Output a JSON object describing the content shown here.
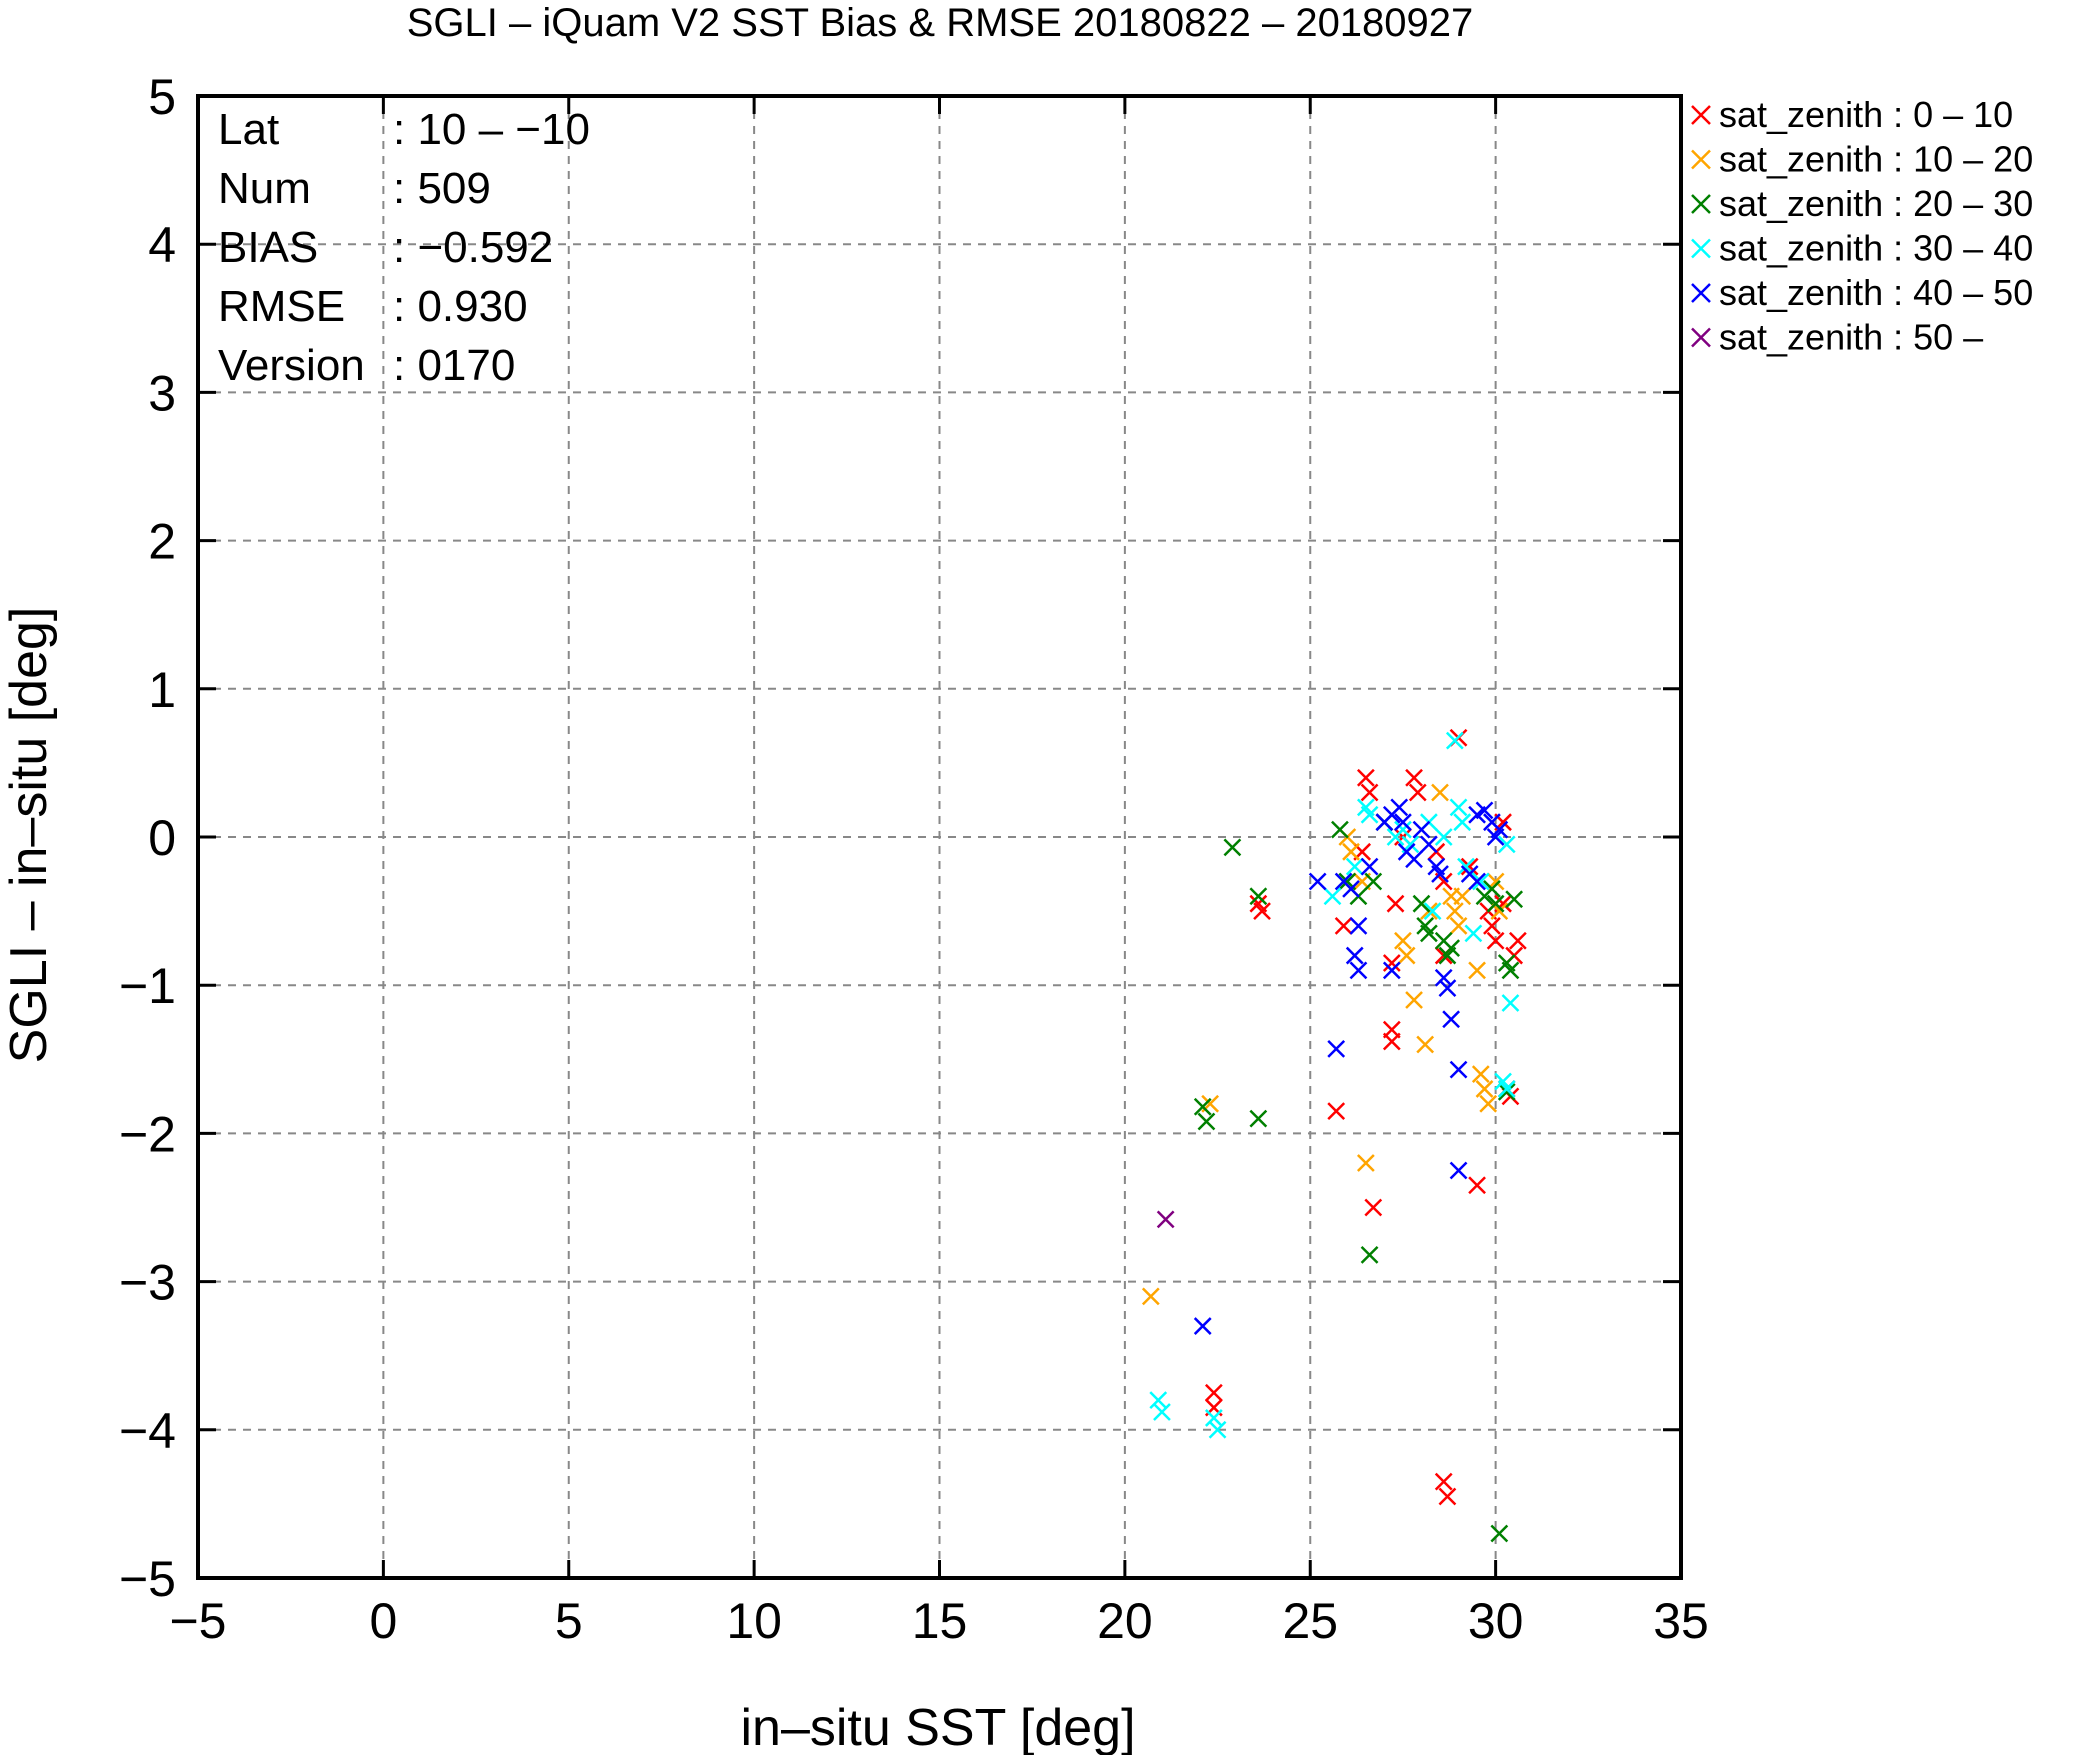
{
  "chart_data": {
    "type": "scatter",
    "title": "SGLI – iQuam V2 SST Bias & RMSE 20180822 – 20180927",
    "xlabel": "in–situ SST [deg]",
    "ylabel": "SGLI – in–situ [deg]",
    "xlim": [
      -5,
      35
    ],
    "ylim": [
      -5,
      5
    ],
    "x_ticks": [
      -5,
      0,
      5,
      10,
      15,
      20,
      25,
      30,
      35
    ],
    "x_tick_labels": [
      "−5",
      "0",
      "5",
      "10",
      "15",
      "20",
      "25",
      "30",
      "35"
    ],
    "y_ticks": [
      -5,
      -4,
      -3,
      -2,
      -1,
      0,
      1,
      2,
      3,
      4,
      5
    ],
    "y_tick_labels": [
      "−5",
      "−4",
      "−3",
      "−2",
      "−1",
      "0",
      "1",
      "2",
      "3",
      "4",
      "5"
    ],
    "grid": true,
    "legend_position": "outside-top-right",
    "stats": [
      {
        "label": "Lat",
        "value": ": 10 – −10"
      },
      {
        "label": "Num",
        "value": ": 509"
      },
      {
        "label": "BIAS",
        "value": ": −0.592"
      },
      {
        "label": "RMSE",
        "value": ": 0.930"
      },
      {
        "label": "Version",
        "value": ": 0170"
      }
    ],
    "series": [
      {
        "name": "sat_zenith :  0 – 10",
        "color": "#ff0000",
        "points": [
          [
            23.6,
            -0.45
          ],
          [
            23.7,
            -0.5
          ],
          [
            22.4,
            -3.75
          ],
          [
            22.4,
            -3.85
          ],
          [
            25.9,
            -0.6
          ],
          [
            25.7,
            -1.85
          ],
          [
            26.5,
            0.4
          ],
          [
            26.6,
            0.3
          ],
          [
            26.7,
            -2.5
          ],
          [
            26.4,
            -0.1
          ],
          [
            27.2,
            -1.3
          ],
          [
            27.2,
            -1.38
          ],
          [
            27.3,
            -0.45
          ],
          [
            27.2,
            -0.85
          ],
          [
            27.8,
            0.4
          ],
          [
            27.9,
            0.3
          ],
          [
            27.5,
            0.0
          ],
          [
            28.4,
            -0.1
          ],
          [
            28.6,
            -0.3
          ],
          [
            28.6,
            -0.8
          ],
          [
            28.6,
            -4.35
          ],
          [
            28.7,
            -4.45
          ],
          [
            29.0,
            0.67
          ],
          [
            29.5,
            -2.35
          ],
          [
            29.8,
            -0.5
          ],
          [
            29.9,
            -0.6
          ],
          [
            30.0,
            -0.7
          ],
          [
            30.2,
            0.1
          ],
          [
            30.3,
            -1.7
          ],
          [
            30.4,
            -1.75
          ],
          [
            30.5,
            -0.8
          ],
          [
            30.6,
            -0.7
          ],
          [
            30.2,
            -0.45
          ],
          [
            29.3,
            -0.2
          ]
        ]
      },
      {
        "name": "sat_zenith : 10 – 20",
        "color": "#ffa500",
        "points": [
          [
            20.7,
            -3.1
          ],
          [
            22.3,
            -1.8
          ],
          [
            26.0,
            0.0
          ],
          [
            26.1,
            -0.1
          ],
          [
            26.5,
            -2.2
          ],
          [
            26.4,
            -0.3
          ],
          [
            27.5,
            -0.7
          ],
          [
            27.6,
            -0.8
          ],
          [
            27.8,
            -1.1
          ],
          [
            28.1,
            -1.4
          ],
          [
            28.2,
            -0.5
          ],
          [
            28.5,
            0.3
          ],
          [
            28.8,
            -0.4
          ],
          [
            28.9,
            -0.5
          ],
          [
            29.0,
            -0.6
          ],
          [
            29.1,
            -0.4
          ],
          [
            29.5,
            -0.9
          ],
          [
            29.6,
            -1.6
          ],
          [
            29.7,
            -1.7
          ],
          [
            29.8,
            -1.8
          ],
          [
            30.0,
            -0.3
          ],
          [
            30.1,
            -0.5
          ]
        ]
      },
      {
        "name": "sat_zenith : 20 – 30",
        "color": "#008000",
        "points": [
          [
            22.9,
            -0.07
          ],
          [
            23.6,
            -0.4
          ],
          [
            23.6,
            -1.9
          ],
          [
            22.1,
            -1.82
          ],
          [
            22.2,
            -1.92
          ],
          [
            25.8,
            0.05
          ],
          [
            26.0,
            -0.3
          ],
          [
            26.3,
            -0.4
          ],
          [
            26.6,
            -2.82
          ],
          [
            26.7,
            -0.3
          ],
          [
            27.0,
            0.1
          ],
          [
            28.0,
            -0.45
          ],
          [
            28.1,
            -0.6
          ],
          [
            28.2,
            -0.65
          ],
          [
            28.6,
            -0.7
          ],
          [
            28.7,
            -0.8
          ],
          [
            28.8,
            -0.75
          ],
          [
            29.7,
            -0.4
          ],
          [
            29.9,
            -0.35
          ],
          [
            30.0,
            -0.45
          ],
          [
            30.1,
            -4.7
          ],
          [
            30.3,
            -1.72
          ],
          [
            30.4,
            -0.9
          ],
          [
            30.5,
            -0.42
          ],
          [
            30.3,
            -0.85
          ]
        ]
      },
      {
        "name": "sat_zenith : 30 – 40",
        "color": "#00ffff",
        "points": [
          [
            20.9,
            -3.8
          ],
          [
            21.0,
            -3.88
          ],
          [
            22.4,
            -3.92
          ],
          [
            22.5,
            -4.0
          ],
          [
            25.6,
            -0.4
          ],
          [
            26.2,
            -0.2
          ],
          [
            26.5,
            0.2
          ],
          [
            26.6,
            0.15
          ],
          [
            27.3,
            0.0
          ],
          [
            27.5,
            0.05
          ],
          [
            27.7,
            -0.05
          ],
          [
            28.2,
            0.1
          ],
          [
            28.3,
            -0.5
          ],
          [
            28.6,
            0.0
          ],
          [
            28.9,
            0.65
          ],
          [
            29.0,
            0.2
          ],
          [
            29.1,
            0.1
          ],
          [
            29.2,
            -0.2
          ],
          [
            29.4,
            -0.65
          ],
          [
            29.6,
            -0.3
          ],
          [
            30.2,
            -1.65
          ],
          [
            30.3,
            -1.7
          ],
          [
            30.4,
            -1.12
          ],
          [
            30.3,
            -0.05
          ]
        ]
      },
      {
        "name": "sat_zenith : 40 – 50",
        "color": "#0000ff",
        "points": [
          [
            22.1,
            -3.3
          ],
          [
            25.2,
            -0.3
          ],
          [
            25.7,
            -1.43
          ],
          [
            25.9,
            -0.3
          ],
          [
            26.1,
            -0.35
          ],
          [
            26.2,
            -0.8
          ],
          [
            26.3,
            -0.9
          ],
          [
            26.3,
            -0.6
          ],
          [
            26.6,
            -0.2
          ],
          [
            27.0,
            0.1
          ],
          [
            27.2,
            0.15
          ],
          [
            27.2,
            -0.9
          ],
          [
            27.4,
            0.2
          ],
          [
            27.5,
            0.1
          ],
          [
            27.6,
            -0.1
          ],
          [
            27.8,
            -0.15
          ],
          [
            28.0,
            0.05
          ],
          [
            28.2,
            -0.05
          ],
          [
            28.4,
            -0.2
          ],
          [
            28.5,
            -0.25
          ],
          [
            28.6,
            -0.95
          ],
          [
            28.7,
            -1.02
          ],
          [
            28.8,
            -1.23
          ],
          [
            29.0,
            -2.25
          ],
          [
            29.0,
            -1.57
          ],
          [
            29.3,
            -0.25
          ],
          [
            29.5,
            0.15
          ],
          [
            29.7,
            0.18
          ],
          [
            29.9,
            0.1
          ],
          [
            30.0,
            0.0
          ],
          [
            30.1,
            0.05
          ],
          [
            29.5,
            -0.3
          ]
        ]
      },
      {
        "name": "sat_zenith : 50 –",
        "color": "#800080",
        "points": [
          [
            21.1,
            -2.58
          ]
        ]
      }
    ]
  }
}
